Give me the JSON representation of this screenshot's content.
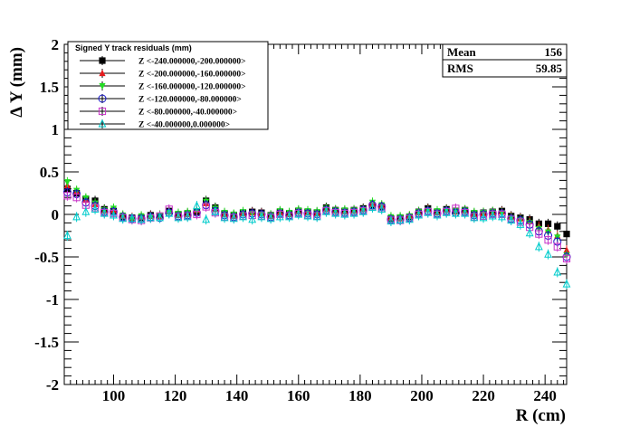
{
  "chart_data": {
    "type": "scatter",
    "xlabel": "R (cm)",
    "ylabel": "Δ Y (mm)",
    "xlim": [
      84,
      247
    ],
    "ylim": [
      -2,
      2
    ],
    "x_ticks": [
      100,
      120,
      140,
      160,
      180,
      200,
      220,
      240
    ],
    "y_ticks": [
      -2,
      -1.5,
      -1,
      -0.5,
      0,
      0.5,
      1,
      1.5,
      2
    ],
    "legend": {
      "title": "Signed Y track residuals (mm)",
      "placement": "top-left"
    },
    "stats": [
      {
        "label": "Mean",
        "value": "156"
      },
      {
        "label": "RMS",
        "value": "59.85"
      }
    ],
    "x": [
      85,
      88,
      91,
      94,
      97,
      100,
      103,
      106,
      109,
      112,
      115,
      118,
      121,
      124,
      127,
      130,
      133,
      136,
      139,
      142,
      145,
      148,
      151,
      154,
      157,
      160,
      163,
      166,
      169,
      172,
      175,
      178,
      181,
      184,
      187,
      190,
      193,
      196,
      199,
      202,
      205,
      208,
      211,
      214,
      217,
      220,
      223,
      226,
      229,
      232,
      235,
      238,
      241,
      244,
      247
    ],
    "series": [
      {
        "name": "Z <-240.000000,-200.000000>",
        "color": "#000000",
        "marker": "filled-square",
        "values": [
          0.3,
          0.25,
          0.18,
          0.16,
          0.06,
          0.04,
          -0.03,
          -0.04,
          -0.04,
          -0.01,
          -0.02,
          0.04,
          0.0,
          0.01,
          0.03,
          0.16,
          0.08,
          0.01,
          -0.01,
          0.02,
          0.03,
          0.02,
          -0.01,
          0.03,
          0.01,
          0.04,
          0.03,
          0.02,
          0.08,
          0.05,
          0.04,
          0.05,
          0.07,
          0.1,
          0.09,
          -0.05,
          -0.04,
          -0.03,
          0.03,
          0.07,
          0.03,
          0.06,
          0.04,
          0.05,
          0.01,
          0.02,
          0.03,
          0.04,
          -0.02,
          -0.04,
          -0.06,
          -0.11,
          -0.11,
          -0.14,
          -0.23
        ]
      },
      {
        "name": "Z <-200.000000,-160.000000>",
        "color": "#e41a1c",
        "marker": "filled-triangle-up",
        "values": [
          0.34,
          0.27,
          0.17,
          0.12,
          0.04,
          0.05,
          -0.02,
          -0.04,
          -0.03,
          -0.02,
          -0.03,
          0.03,
          -0.01,
          0.0,
          0.05,
          0.13,
          0.06,
          0.0,
          -0.02,
          0.01,
          0.02,
          0.01,
          -0.02,
          0.02,
          0.0,
          0.03,
          0.02,
          0.01,
          0.06,
          0.04,
          0.03,
          0.04,
          0.06,
          0.12,
          0.1,
          -0.04,
          -0.05,
          -0.02,
          0.02,
          0.06,
          0.02,
          0.05,
          0.03,
          0.04,
          0.0,
          0.01,
          0.02,
          0.03,
          -0.03,
          -0.05,
          -0.08,
          -0.14,
          -0.18,
          -0.25,
          -0.42
        ]
      },
      {
        "name": "Z <-160.000000,-120.000000>",
        "color": "#22dd22",
        "marker": "filled-triangle-down",
        "values": [
          0.38,
          0.28,
          0.19,
          0.13,
          0.05,
          0.07,
          -0.01,
          -0.05,
          -0.02,
          -0.03,
          -0.01,
          0.02,
          0.01,
          0.02,
          0.04,
          0.15,
          0.07,
          0.02,
          0.0,
          0.03,
          0.01,
          0.0,
          -0.01,
          0.04,
          0.02,
          0.05,
          0.04,
          0.03,
          0.07,
          0.05,
          0.05,
          0.05,
          0.06,
          0.14,
          0.11,
          -0.03,
          -0.03,
          -0.02,
          0.03,
          0.05,
          0.04,
          0.05,
          0.04,
          0.05,
          0.02,
          0.02,
          0.03,
          0.02,
          -0.04,
          -0.06,
          -0.1,
          -0.17,
          -0.21,
          -0.27,
          -0.48
        ]
      },
      {
        "name": "Z <-120.000000,-80.000000>",
        "color": "#1414c8",
        "marker": "open-circle",
        "values": [
          0.26,
          0.24,
          0.14,
          0.1,
          0.03,
          0.03,
          -0.03,
          -0.05,
          -0.05,
          -0.03,
          -0.04,
          0.02,
          -0.02,
          -0.01,
          0.02,
          0.11,
          0.04,
          -0.01,
          -0.03,
          0.0,
          0.01,
          0.0,
          -0.03,
          0.01,
          -0.01,
          0.02,
          0.01,
          0.0,
          0.05,
          0.03,
          0.02,
          0.03,
          0.05,
          0.11,
          0.09,
          -0.06,
          -0.06,
          -0.04,
          0.01,
          0.04,
          0.01,
          0.04,
          0.02,
          0.03,
          -0.01,
          0.0,
          0.01,
          0.01,
          -0.05,
          -0.07,
          -0.12,
          -0.2,
          -0.25,
          -0.32,
          -0.5
        ]
      },
      {
        "name": "Z <-80.000000,-40.000000>",
        "color": "#c832c8",
        "marker": "open-square",
        "values": [
          0.22,
          0.2,
          0.11,
          0.08,
          0.02,
          0.01,
          -0.04,
          -0.06,
          -0.07,
          -0.04,
          -0.02,
          0.06,
          -0.03,
          -0.02,
          0.0,
          0.09,
          0.02,
          -0.03,
          -0.04,
          -0.02,
          -0.01,
          -0.02,
          -0.04,
          0.0,
          -0.02,
          0.01,
          -0.01,
          -0.02,
          0.04,
          0.02,
          0.01,
          0.02,
          0.04,
          0.09,
          0.07,
          -0.07,
          -0.07,
          -0.05,
          0.0,
          0.03,
          0.0,
          0.03,
          0.07,
          0.02,
          -0.03,
          -0.02,
          0.0,
          0.0,
          -0.06,
          -0.09,
          -0.15,
          -0.23,
          -0.3,
          -0.38,
          -0.52
        ]
      },
      {
        "name": "Z <-40.000000,0.000000>",
        "color": "#00cccc",
        "marker": "open-triangle-up",
        "values": [
          -0.25,
          -0.03,
          0.03,
          0.06,
          0.01,
          -0.01,
          -0.05,
          -0.05,
          -0.06,
          -0.04,
          -0.04,
          0.01,
          -0.04,
          -0.03,
          0.1,
          -0.06,
          0.03,
          -0.04,
          -0.05,
          -0.03,
          -0.06,
          -0.03,
          -0.05,
          -0.03,
          -0.03,
          0.0,
          -0.02,
          -0.03,
          0.03,
          0.01,
          0.0,
          0.01,
          0.03,
          0.08,
          0.06,
          -0.08,
          -0.07,
          -0.06,
          -0.01,
          0.02,
          -0.01,
          0.02,
          0.01,
          0.01,
          -0.04,
          -0.04,
          -0.02,
          -0.03,
          -0.07,
          -0.12,
          -0.22,
          -0.38,
          -0.47,
          -0.68,
          -0.82
        ]
      }
    ]
  }
}
